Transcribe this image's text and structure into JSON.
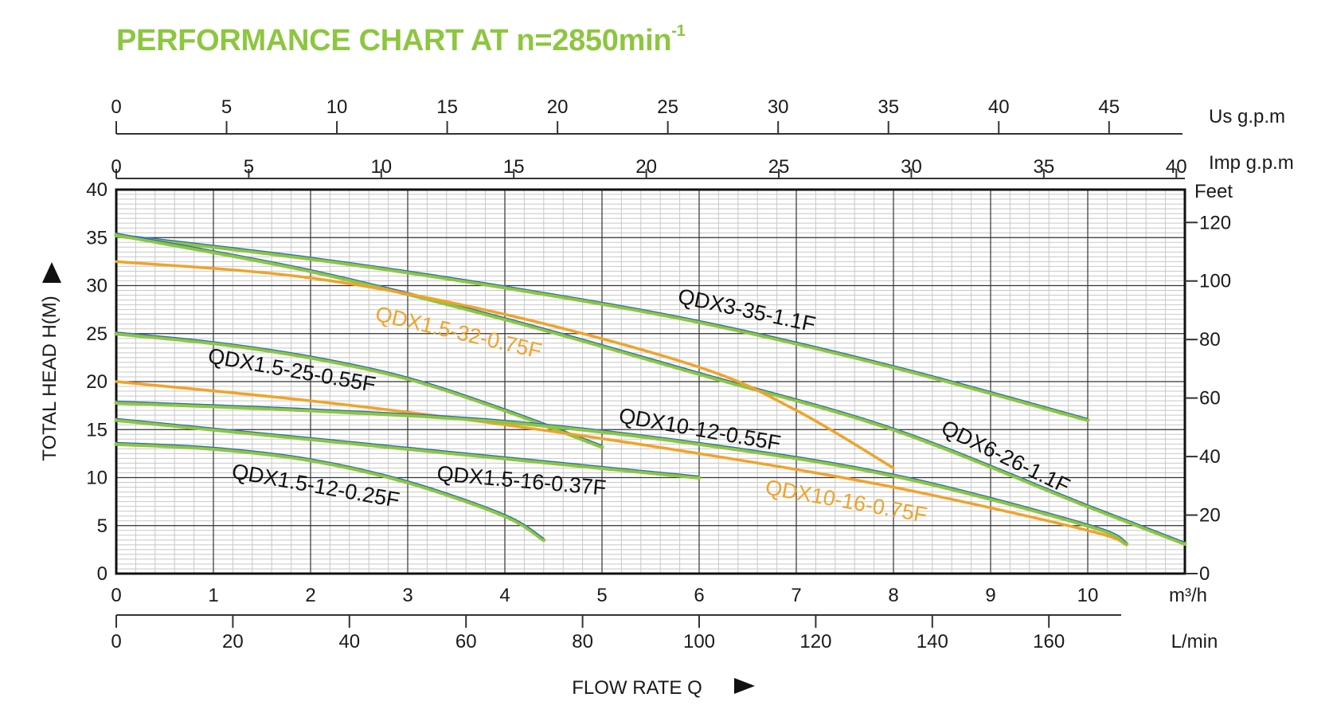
{
  "title": {
    "text": "PERFORMANCE CHART AT n=2850min",
    "superscript": "-1"
  },
  "colors": {
    "title": "#8dc63f",
    "green_curve": "#8dc63f",
    "orange_curve": "#f0a32a",
    "blue_line": "#2b6cc4",
    "grid_major": "#333333",
    "grid_minor": "#c8c8c8"
  },
  "chart_data": {
    "type": "line",
    "title": "PERFORMANCE CHART AT n=2850min-1",
    "xlabel": "FLOW RATE Q",
    "ylabel": "TOTAL HEAD H(M)",
    "xlim": [
      0,
      11
    ],
    "ylim": [
      0,
      40
    ],
    "grid": true,
    "axes": {
      "us_gpm": {
        "unit": "Us g.p.m",
        "ticks": [
          0,
          5,
          10,
          15,
          20,
          25,
          30,
          35,
          40,
          45
        ]
      },
      "imp_gpm": {
        "unit": "Imp g.p.m",
        "ticks": [
          0,
          5,
          10,
          15,
          20,
          25,
          30,
          35,
          40
        ]
      },
      "m3h": {
        "unit": "m³/h",
        "ticks": [
          0,
          1,
          2,
          3,
          4,
          5,
          6,
          7,
          8,
          9,
          10
        ]
      },
      "lmin": {
        "unit": "L/min",
        "ticks": [
          0,
          20,
          40,
          60,
          80,
          100,
          120,
          140,
          160
        ]
      },
      "head_m": {
        "ticks": [
          0,
          5,
          10,
          15,
          20,
          25,
          30,
          35,
          40
        ]
      },
      "feet": {
        "unit": "Feet",
        "ticks": [
          0,
          20,
          40,
          60,
          80,
          100,
          120
        ]
      }
    },
    "series": [
      {
        "name": "QDX3-35-1.1F",
        "color": "green",
        "points": [
          [
            0,
            35.2
          ],
          [
            2,
            32.8
          ],
          [
            4,
            29.8
          ],
          [
            6,
            26.2
          ],
          [
            8,
            21.5
          ],
          [
            10,
            16
          ]
        ]
      },
      {
        "name": "QDX6-26-1.1F",
        "color": "green",
        "points": [
          [
            0,
            35.3
          ],
          [
            2,
            31.5
          ],
          [
            4,
            26.5
          ],
          [
            6,
            20.8
          ],
          [
            8,
            15
          ],
          [
            10,
            7
          ],
          [
            11,
            3.1
          ]
        ]
      },
      {
        "name": "QDX1.5-32-0.75F",
        "color": "orange",
        "points": [
          [
            0,
            32.5
          ],
          [
            2,
            30.8
          ],
          [
            4,
            27
          ],
          [
            6,
            21.5
          ],
          [
            7,
            17
          ],
          [
            8,
            11
          ]
        ]
      },
      {
        "name": "QDX1.5-25-0.55F",
        "color": "green",
        "points": [
          [
            0,
            25
          ],
          [
            1,
            24
          ],
          [
            2,
            22.5
          ],
          [
            3,
            20.3
          ],
          [
            4,
            17
          ],
          [
            5,
            13.2
          ]
        ]
      },
      {
        "name": "QDX10-16-0.75F",
        "color": "orange",
        "points": [
          [
            0,
            20
          ],
          [
            2,
            18
          ],
          [
            4,
            15.5
          ],
          [
            6,
            12.5
          ],
          [
            8,
            9
          ],
          [
            10,
            4.5
          ],
          [
            10.4,
            3
          ]
        ]
      },
      {
        "name": "QDX10-12-0.55F",
        "color": "green",
        "points": [
          [
            0,
            17.8
          ],
          [
            2,
            17
          ],
          [
            4,
            15.8
          ],
          [
            6,
            13.5
          ],
          [
            8,
            10.2
          ],
          [
            10,
            5
          ],
          [
            10.4,
            3.1
          ]
        ]
      },
      {
        "name": "QDX1.5-16-0.37F",
        "color": "green",
        "points": [
          [
            0,
            16
          ],
          [
            1,
            15
          ],
          [
            2,
            14
          ],
          [
            3,
            13
          ],
          [
            4,
            12
          ],
          [
            5,
            11
          ],
          [
            6,
            10
          ]
        ]
      },
      {
        "name": "QDX1.5-12-0.25F",
        "color": "green",
        "points": [
          [
            0,
            13.5
          ],
          [
            1,
            13
          ],
          [
            2,
            11.8
          ],
          [
            3,
            9.5
          ],
          [
            4,
            6
          ],
          [
            4.4,
            3.5
          ]
        ]
      }
    ]
  },
  "curve_labels": [
    {
      "text": "QDX3-35-1.1F",
      "color": "black"
    },
    {
      "text": "QDX1.5-32-0.75F",
      "color": "orange"
    },
    {
      "text": "QDX1.5-25-0.55F",
      "color": "black"
    },
    {
      "text": "QDX10-12-0.55F",
      "color": "black"
    },
    {
      "text": "QDX6-26-1.1F",
      "color": "black"
    },
    {
      "text": "QDX1.5-16-0.37F",
      "color": "black"
    },
    {
      "text": "QDX1.5-12-0.25F",
      "color": "black"
    },
    {
      "text": "QDX10-16-0.75F",
      "color": "orange"
    }
  ]
}
